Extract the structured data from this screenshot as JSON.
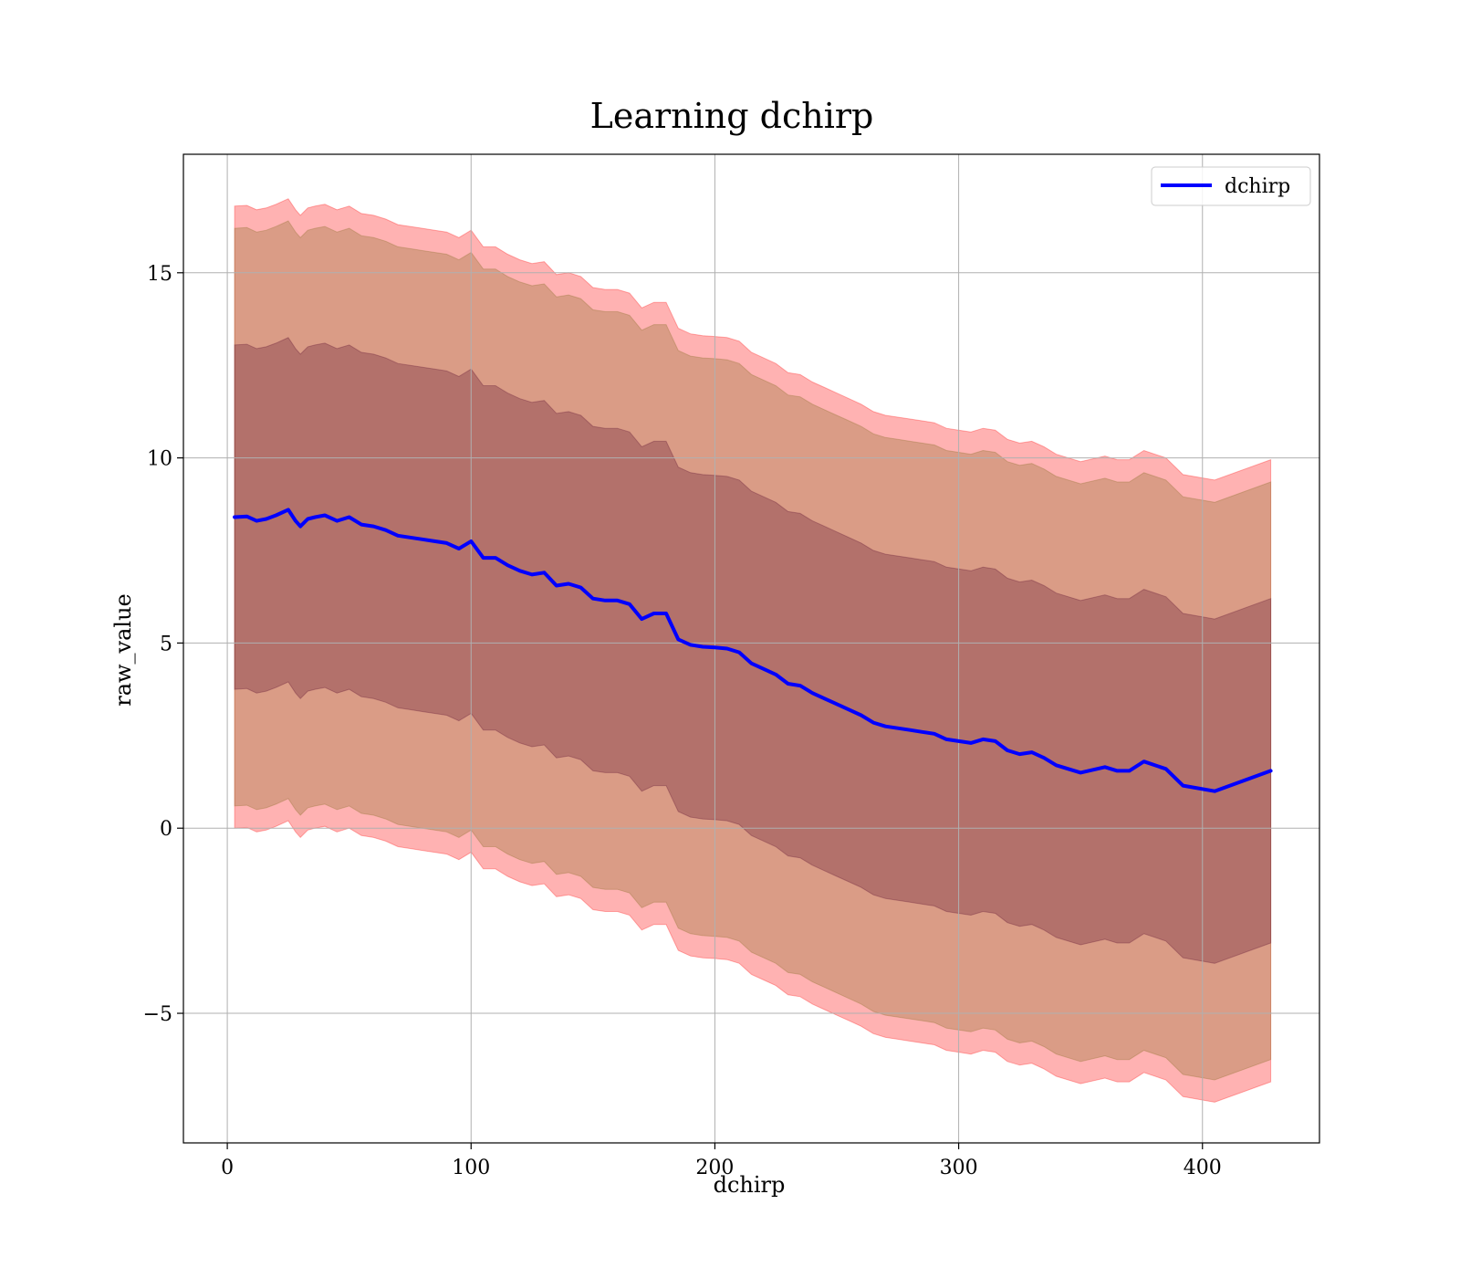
{
  "chart_data": {
    "type": "line",
    "title": "Learning dchirp",
    "xlabel": "dchirp",
    "ylabel": "raw_value",
    "xlim": [
      -18,
      448
    ],
    "ylim": [
      -8.5,
      18.2
    ],
    "xticks": [
      0,
      100,
      200,
      300,
      400
    ],
    "yticks": [
      -5,
      0,
      5,
      10,
      15
    ],
    "xtick_labels": [
      "0",
      "100",
      "200",
      "300",
      "400"
    ],
    "ytick_labels": [
      "−5",
      "0",
      "5",
      "10",
      "15"
    ],
    "grid": true,
    "legend_position": "top-right",
    "series": [
      {
        "name": "dchirp",
        "color": "#0000ff",
        "x": [
          3,
          8,
          12,
          16,
          20,
          25,
          28,
          30,
          33,
          36,
          40,
          45,
          50,
          55,
          60,
          65,
          70,
          75,
          80,
          85,
          90,
          95,
          100,
          105,
          110,
          115,
          120,
          125,
          130,
          135,
          140,
          145,
          150,
          155,
          160,
          165,
          170,
          175,
          180,
          185,
          190,
          195,
          200,
          205,
          210,
          215,
          220,
          225,
          230,
          235,
          240,
          245,
          250,
          255,
          260,
          265,
          270,
          275,
          280,
          285,
          290,
          295,
          300,
          305,
          310,
          315,
          320,
          325,
          330,
          335,
          340,
          350,
          360,
          365,
          370,
          376,
          385,
          392,
          405,
          428
        ],
        "y": [
          8.4,
          8.42,
          8.3,
          8.35,
          8.45,
          8.6,
          8.3,
          8.15,
          8.35,
          8.4,
          8.45,
          8.3,
          8.4,
          8.2,
          8.15,
          8.05,
          7.9,
          7.85,
          7.8,
          7.75,
          7.7,
          7.55,
          7.75,
          7.3,
          7.3,
          7.1,
          6.95,
          6.85,
          6.9,
          6.55,
          6.6,
          6.5,
          6.2,
          6.15,
          6.15,
          6.05,
          5.65,
          5.8,
          5.8,
          5.1,
          4.95,
          4.9,
          4.88,
          4.85,
          4.75,
          4.45,
          4.3,
          4.15,
          3.9,
          3.85,
          3.65,
          3.5,
          3.35,
          3.2,
          3.05,
          2.85,
          2.75,
          2.7,
          2.65,
          2.6,
          2.55,
          2.4,
          2.35,
          2.3,
          2.4,
          2.35,
          2.1,
          2.0,
          2.05,
          1.9,
          1.7,
          1.5,
          1.65,
          1.55,
          1.55,
          1.8,
          1.6,
          1.15,
          1.0,
          1.55
        ]
      }
    ],
    "bands": [
      {
        "sigma": 3,
        "color": "#ff0000",
        "opacity": 0.3
      },
      {
        "sigma": 2.5,
        "color": "#8b6f2a",
        "opacity": 0.32
      },
      {
        "sigma": 1.5,
        "color": "#5a0d2e",
        "opacity": 0.3
      }
    ],
    "band_half_widths": [
      8.4,
      7.8,
      4.65
    ]
  }
}
